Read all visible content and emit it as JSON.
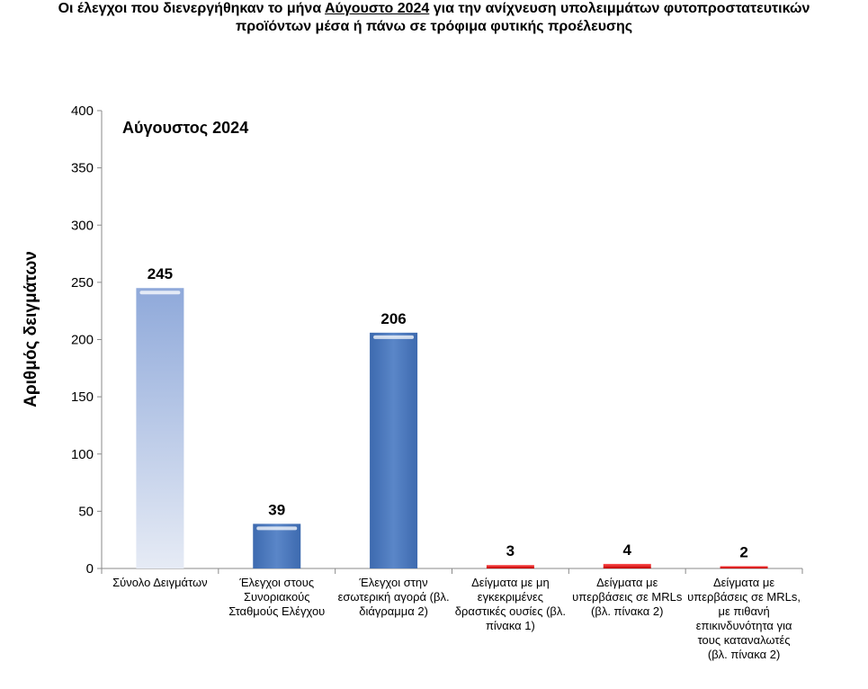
{
  "title": {
    "pre": "Οι έλεγχοι που διενεργήθηκαν το μήνα ",
    "highlight": "Αύγουστο 2024",
    "post": " για την ανίχνευση υπολειμμάτων φυτοπροστατευτικών προϊόντων μέσα ή πάνω σε τρόφιμα φυτικής προέλευσης"
  },
  "chart_data": {
    "type": "bar",
    "title": "Οι έλεγχοι που διενεργήθηκαν το μήνα Αύγουστο 2024 για την ανίχνευση υπολειμμάτων φυτοπροστατευτικών προϊόντων μέσα ή πάνω σε τρόφιμα φυτικής προέλευσης",
    "subtitle": "Αύγουστος 2024",
    "ylabel": "Αριθμός δειγμάτων",
    "xlabel": "",
    "ylim": [
      0,
      400
    ],
    "yticks": [
      0,
      50,
      100,
      150,
      200,
      250,
      300,
      350,
      400
    ],
    "grid": false,
    "categories": [
      "Σύνολο Δειγμάτων",
      "Έλεγχοι στους Συνοριακούς Σταθμούς Ελέγχου",
      "Έλεγχοι στην εσωτερική αγορά (βλ. διάγραμμα 2)",
      "Δείγματα με μη εγκεκριμένες δραστικές ουσίες (βλ. πίνακα 1)",
      "Δείγματα με υπερβάσεις σε MRLs (βλ. πίνακα 2)",
      "Δείγματα με υπερβάσεις σε MRLs, με πιθανή επικινδυνότητα για τους καταναλωτές (βλ. πίνακα 2)"
    ],
    "values": [
      245,
      39,
      206,
      3,
      4,
      2
    ],
    "data_labels": [
      "245",
      "39",
      "206",
      "3",
      "4",
      "2"
    ],
    "colors": [
      "#9fb6df",
      "#4a78bd",
      "#4a78bd",
      "#e02020",
      "#e02020",
      "#e02020"
    ]
  }
}
